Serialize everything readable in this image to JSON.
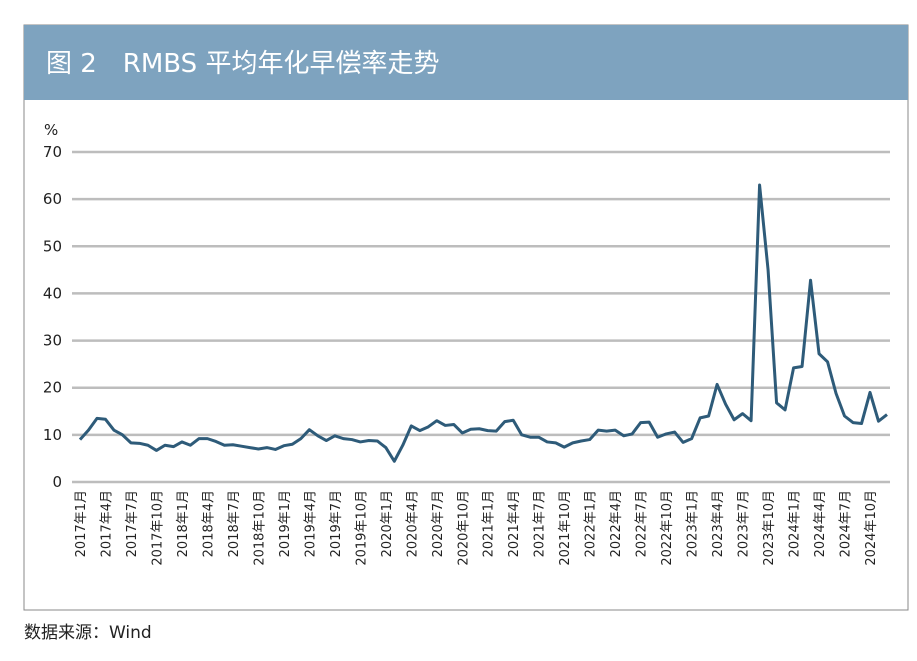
{
  "chart_data": {
    "type": "line",
    "title": "图 2　RMBS 平均年化早偿率走势",
    "y_unit": "%",
    "source": "数据来源：Wind",
    "color": "#2e5b79",
    "grid": true,
    "categories": [
      "2017年1月",
      null,
      null,
      "2017年4月",
      null,
      null,
      "2017年7月",
      null,
      null,
      "2017年10月",
      null,
      null,
      "2018年1月",
      null,
      null,
      "2018年4月",
      null,
      null,
      "2018年7月",
      null,
      null,
      "2018年10月",
      null,
      null,
      "2019年1月",
      null,
      null,
      "2019年4月",
      null,
      null,
      "2019年7月",
      null,
      null,
      "2019年10月",
      null,
      null,
      "2020年1月",
      null,
      null,
      "2020年4月",
      null,
      null,
      "2020年7月",
      null,
      null,
      "2020年10月",
      null,
      null,
      "2021年1月",
      null,
      null,
      "2021年4月",
      null,
      null,
      "2021年7月",
      null,
      null,
      "2021年10月",
      null,
      null,
      "2022年1月",
      null,
      null,
      "2022年4月",
      null,
      null,
      "2022年7月",
      null,
      null,
      "2022年10月",
      null,
      null,
      "2023年1月",
      null,
      null,
      "2023年4月",
      null,
      null,
      "2023年7月",
      null,
      null,
      "2023年10月",
      null,
      null,
      "2024年1月",
      null,
      null,
      "2024年4月",
      null,
      null,
      "2024年7月",
      null,
      null,
      "2024年10月",
      null,
      null
    ],
    "values": [
      9,
      11,
      13.5,
      13.3,
      11,
      10,
      8.3,
      8.2,
      7.8,
      6.7,
      7.8,
      7.5,
      8.5,
      7.8,
      9.2,
      9.2,
      8.6,
      7.8,
      7.9,
      7.6,
      7.3,
      7,
      7.3,
      6.9,
      7.7,
      8,
      9.2,
      11.1,
      9.8,
      8.8,
      9.8,
      9.2,
      9,
      8.5,
      8.8,
      8.7,
      7.3,
      4.4,
      7.8,
      11.9,
      10.9,
      11.7,
      13,
      12,
      12.2,
      10.4,
      11.2,
      11.3,
      10.9,
      10.8,
      12.8,
      13.1,
      10,
      9.5,
      9.5,
      8.5,
      8.3,
      7.4,
      8.3,
      8.7,
      9,
      11,
      10.8,
      11,
      9.8,
      10.2,
      12.6,
      12.7,
      9.5,
      10.2,
      10.6,
      8.4,
      9.2,
      13.6,
      14,
      20.7,
      16.5,
      13.2,
      14.5,
      13,
      63,
      45,
      16.8,
      15.3,
      24.2,
      24.5,
      42.8,
      27.2,
      25.5,
      18.8,
      14,
      12.6,
      12.4,
      19,
      12.9,
      14.3
    ],
    "ylim": [
      0,
      70
    ],
    "yticks": [
      0,
      10,
      20,
      30,
      40,
      50,
      60,
      70
    ]
  }
}
